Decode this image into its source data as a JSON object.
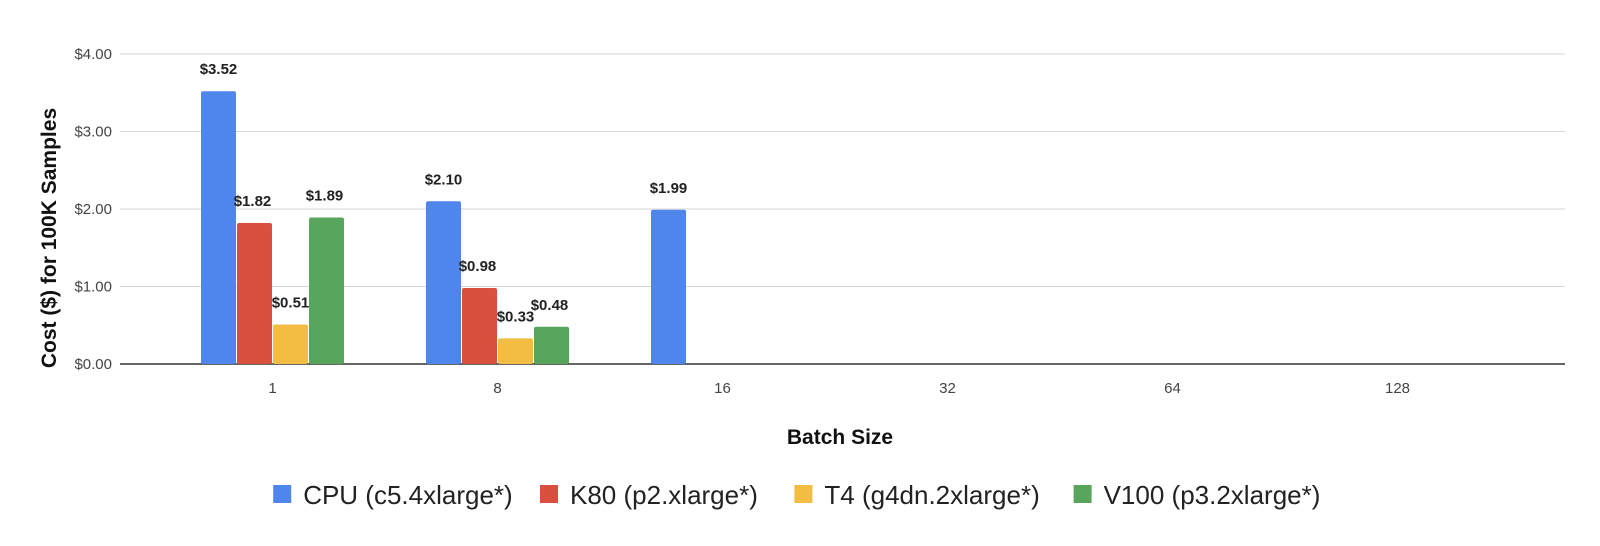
{
  "chart_data": {
    "type": "bar",
    "title": "",
    "xlabel": "Batch Size",
    "ylabel": "Cost ($) for 100K Samples",
    "categories": [
      "1",
      "8",
      "16",
      "32",
      "64",
      "128"
    ],
    "ylim": [
      0,
      4
    ],
    "yticks": [
      0,
      1,
      2,
      3,
      4
    ],
    "ytick_labels": [
      "$0.00",
      "$1.00",
      "$2.00",
      "$3.00",
      "$4.00"
    ],
    "grid": true,
    "legend_position": "bottom",
    "series": [
      {
        "name": "CPU (c5.4xlarge*)",
        "color": "#4F86EC",
        "values": [
          3.52,
          2.1,
          1.99,
          null,
          null,
          null
        ],
        "labels": [
          "$3.52",
          "$2.10",
          "$1.99",
          "",
          "",
          ""
        ]
      },
      {
        "name": "K80 (p2.xlarge*)",
        "color": "#D9503F",
        "values": [
          1.82,
          0.98,
          null,
          null,
          null,
          null
        ],
        "labels": [
          "$1.82",
          "$0.98",
          "",
          "",
          "",
          ""
        ]
      },
      {
        "name": "T4 (g4dn.2xlarge*)",
        "color": "#F2BD42",
        "values": [
          0.51,
          0.33,
          null,
          null,
          null,
          null
        ],
        "labels": [
          "$0.51",
          "$0.33",
          "",
          "",
          "",
          ""
        ]
      },
      {
        "name": "V100 (p3.2xlarge*)",
        "color": "#58A55C",
        "values": [
          1.89,
          0.48,
          null,
          null,
          null,
          null
        ],
        "labels": [
          "$1.89",
          "$0.48",
          "",
          "",
          "",
          ""
        ]
      }
    ]
  }
}
